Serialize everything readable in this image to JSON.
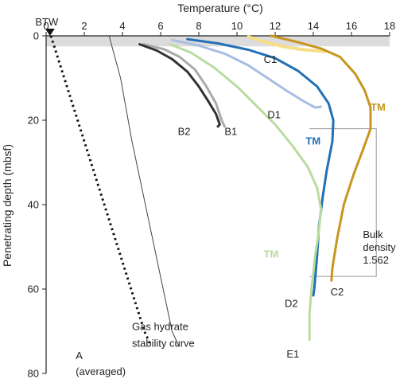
{
  "chart_data": {
    "type": "line",
    "title": "",
    "xlabel": "Temperature (°C)",
    "ylabel": "Penetrating depth (mbsf)",
    "xlim": [
      0,
      18
    ],
    "ylim": [
      80,
      0
    ],
    "x_ticks": [
      "0",
      "2",
      "4",
      "6",
      "8",
      "10",
      "12",
      "14",
      "16",
      "18"
    ],
    "y_ticks": [
      "0",
      "20",
      "40",
      "60",
      "80"
    ],
    "grid": false,
    "shaded_band": {
      "x": [
        0,
        18
      ],
      "y": [
        0,
        2.5
      ],
      "color": "#dcdcdc"
    },
    "bottom_water_marker": {
      "label": "BTW",
      "x": 0.2,
      "y": 0
    },
    "series": [
      {
        "name": "A (averaged)",
        "style": "dotted",
        "color": "#111111",
        "points": [
          [
            0.25,
            0
          ],
          [
            0.6,
            5
          ],
          [
            0.95,
            10
          ],
          [
            1.3,
            15
          ],
          [
            1.65,
            20
          ],
          [
            2.0,
            25
          ],
          [
            2.35,
            30
          ],
          [
            2.7,
            35
          ],
          [
            3.05,
            40
          ],
          [
            3.4,
            45
          ],
          [
            3.75,
            50
          ],
          [
            4.1,
            55
          ],
          [
            4.45,
            60
          ],
          [
            4.8,
            65
          ],
          [
            5.15,
            70
          ],
          [
            5.45,
            73
          ]
        ]
      },
      {
        "name": "Gas hydrate stability curve",
        "style": "thin",
        "color": "#444444",
        "points": [
          [
            3.3,
            0
          ],
          [
            3.9,
            10
          ],
          [
            4.5,
            25
          ],
          [
            5.2,
            40
          ],
          [
            5.9,
            55
          ],
          [
            6.6,
            70
          ],
          [
            6.95,
            73.5
          ]
        ]
      },
      {
        "name": "B1",
        "color": "#aaaaaa",
        "width": 3,
        "points": [
          [
            5.1,
            2
          ],
          [
            6.2,
            3.2
          ],
          [
            7.0,
            5
          ],
          [
            7.8,
            8
          ],
          [
            8.4,
            12
          ],
          [
            8.9,
            16
          ],
          [
            9.2,
            20
          ],
          [
            9.35,
            21.5
          ]
        ]
      },
      {
        "name": "B2",
        "color": "#333333",
        "width": 3,
        "points": [
          [
            4.9,
            2
          ],
          [
            5.8,
            3.5
          ],
          [
            6.6,
            5.5
          ],
          [
            7.4,
            8.5
          ],
          [
            8.0,
            12
          ],
          [
            8.5,
            15.5
          ],
          [
            8.9,
            18.5
          ],
          [
            9.1,
            21
          ],
          [
            9.0,
            21.5
          ]
        ]
      },
      {
        "name": "C1",
        "color": "#f5de86",
        "width": 4,
        "points": [
          [
            10.6,
            0.2
          ],
          [
            11.5,
            1.5
          ],
          [
            12.5,
            2.6
          ],
          [
            13.5,
            3.3
          ],
          [
            14.6,
            3.7
          ]
        ]
      },
      {
        "name": "C2",
        "color": "#c8961f",
        "width": 3,
        "points": [
          [
            11.8,
            0
          ],
          [
            13.2,
            1.5
          ],
          [
            14.4,
            3
          ],
          [
            15.4,
            5
          ],
          [
            16.2,
            9
          ],
          [
            16.7,
            13
          ],
          [
            17.0,
            17
          ],
          [
            17.0,
            22
          ],
          [
            16.6,
            27
          ],
          [
            16.1,
            33
          ],
          [
            15.6,
            40
          ],
          [
            15.25,
            48
          ],
          [
            15.0,
            55
          ],
          [
            14.95,
            58
          ]
        ]
      },
      {
        "name": "D1",
        "color": "#a9bde3",
        "width": 3,
        "points": [
          [
            6.6,
            1
          ],
          [
            8.0,
            2.3
          ],
          [
            9.4,
            4.3
          ],
          [
            10.6,
            7
          ],
          [
            11.6,
            10
          ],
          [
            12.6,
            13
          ],
          [
            13.5,
            15.5
          ],
          [
            14.1,
            17
          ],
          [
            14.4,
            16.8
          ]
        ]
      },
      {
        "name": "D2",
        "color": "#2270b6",
        "width": 3,
        "points": [
          [
            7.4,
            0.8
          ],
          [
            9.0,
            1.8
          ],
          [
            10.6,
            3.3
          ],
          [
            12.0,
            5.3
          ],
          [
            13.2,
            8.3
          ],
          [
            14.2,
            12
          ],
          [
            14.8,
            16
          ],
          [
            15.05,
            20
          ],
          [
            15.0,
            25
          ],
          [
            14.7,
            32
          ],
          [
            14.5,
            38
          ],
          [
            14.3,
            45
          ],
          [
            14.2,
            52
          ],
          [
            14.05,
            60
          ],
          [
            14.0,
            61.5
          ]
        ]
      },
      {
        "name": "E1",
        "color": "#b9dca0",
        "width": 3,
        "points": [
          [
            6.5,
            2
          ],
          [
            7.6,
            4
          ],
          [
            8.8,
            7.5
          ],
          [
            10.0,
            12
          ],
          [
            11.0,
            16.5
          ],
          [
            12.0,
            21
          ],
          [
            12.9,
            26
          ],
          [
            13.7,
            31
          ],
          [
            14.2,
            36
          ],
          [
            14.4,
            41
          ],
          [
            14.3,
            46
          ],
          [
            14.1,
            52
          ],
          [
            13.9,
            60
          ],
          [
            13.8,
            66
          ],
          [
            13.8,
            72
          ]
        ]
      }
    ],
    "labels": [
      {
        "text": "B1",
        "x": 9.35,
        "y": 23.5
      },
      {
        "text": "B2",
        "x": 6.9,
        "y": 23.5
      },
      {
        "text": "C1",
        "x": 11.4,
        "y": 6.4
      },
      {
        "text": "C2",
        "x": 14.9,
        "y": 61.5
      },
      {
        "text": "D1",
        "x": 11.6,
        "y": 19.5
      },
      {
        "text": "D2",
        "x": 12.5,
        "y": 64.2
      },
      {
        "text": "E1",
        "x": 12.6,
        "y": 76.2
      },
      {
        "text": "TM",
        "x": 17.0,
        "y": 17.7,
        "color": "#c8961f"
      },
      {
        "text": "TM",
        "x": 13.6,
        "y": 25.8,
        "color": "#2270b6"
      },
      {
        "text": "TM",
        "x": 11.4,
        "y": 52.5,
        "color": "#b9dca0"
      },
      {
        "text": "Gas hydrate",
        "x": 4.5,
        "y": 69.7
      },
      {
        "text": "stability curve",
        "x": 4.5,
        "y": 73.7
      },
      {
        "text": "A",
        "x": 1.55,
        "y": 76.6
      },
      {
        "text": "(averaged)",
        "x": 1.55,
        "y": 80.4
      }
    ],
    "annotation": {
      "lines": [
        "Bulk",
        "density:",
        "1.562"
      ],
      "x": 16.6,
      "y": 47.9
    },
    "bracket": {
      "x0": 13.8,
      "x1": 17.3,
      "y0": 22,
      "y1": 57
    }
  }
}
